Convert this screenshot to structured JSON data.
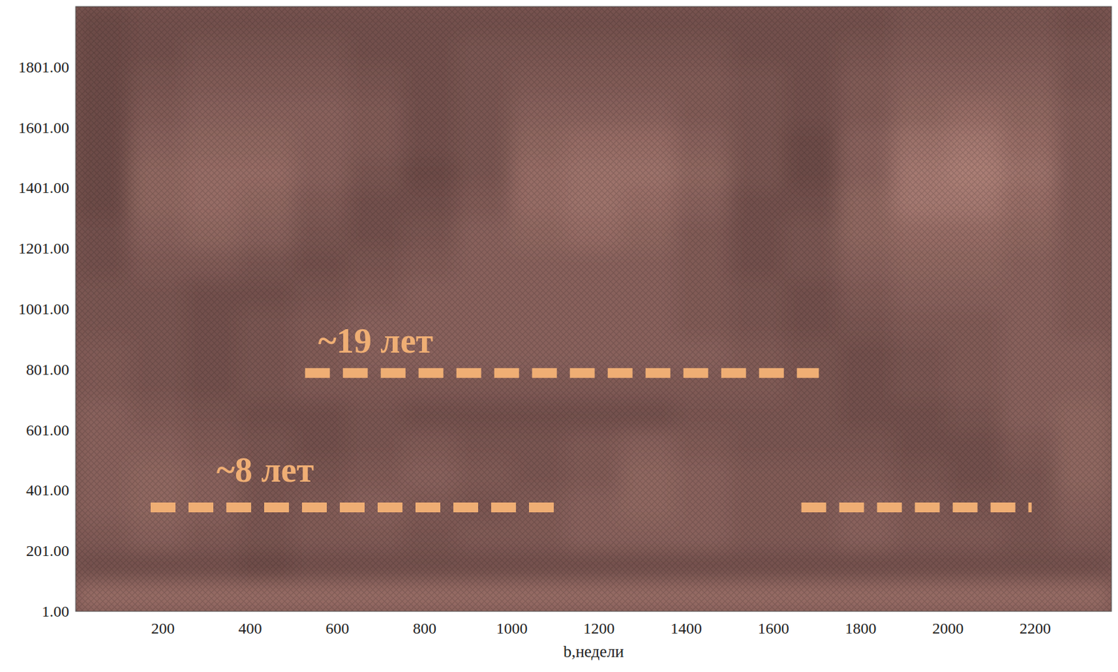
{
  "chart_data": {
    "type": "heatmap",
    "x_label": "b,недели",
    "xlim": [
      0,
      2375
    ],
    "ylim": [
      1,
      2001
    ],
    "xticks": [
      200,
      400,
      600,
      800,
      1000,
      1200,
      1400,
      1600,
      1800,
      2000,
      2200
    ],
    "yticks": [
      {
        "value": 1,
        "label": "1.00"
      },
      {
        "value": 201,
        "label": "201.00"
      },
      {
        "value": 401,
        "label": "401.00"
      },
      {
        "value": 601,
        "label": "601.00"
      },
      {
        "value": 801,
        "label": "801.00"
      },
      {
        "value": 1001,
        "label": "1001.00"
      },
      {
        "value": 1201,
        "label": "1201.00"
      },
      {
        "value": 1401,
        "label": "1401.00"
      },
      {
        "value": 1601,
        "label": "1601.00"
      },
      {
        "value": 1801,
        "label": "1801.00"
      }
    ],
    "colors": [
      "#3a2021",
      "#dba698"
    ],
    "zlim": [
      0,
      1
    ],
    "color": "#efae74",
    "x_edges": [
      0,
      125,
      250,
      375,
      500,
      625,
      750,
      875,
      1000,
      1125,
      1250,
      1375,
      1500,
      1625,
      1750,
      1875,
      2000,
      2125,
      2250,
      2375
    ],
    "y_edges": [
      1,
      101,
      201,
      301,
      401,
      501,
      601,
      701,
      801,
      901,
      1001,
      1101,
      1201,
      1301,
      1401,
      1501,
      1601,
      1701,
      1801,
      1901,
      2001
    ],
    "cells": [
      [
        0.6,
        0.6,
        0.6,
        0.6,
        0.6,
        0.6,
        0.6,
        0.6,
        0.6,
        0.6,
        0.6,
        0.6,
        0.6,
        0.6,
        0.6,
        0.6,
        0.6,
        0.6,
        0.6
      ],
      [
        0.35,
        0.35,
        0.35,
        0.3,
        0.35,
        0.35,
        0.35,
        0.35,
        0.35,
        0.35,
        0.35,
        0.35,
        0.35,
        0.35,
        0.35,
        0.35,
        0.35,
        0.35,
        0.35
      ],
      [
        0.45,
        0.5,
        0.45,
        0.4,
        0.45,
        0.45,
        0.4,
        0.45,
        0.45,
        0.5,
        0.5,
        0.5,
        0.45,
        0.45,
        0.5,
        0.45,
        0.45,
        0.4,
        0.45
      ],
      [
        0.5,
        0.55,
        0.5,
        0.4,
        0.45,
        0.5,
        0.45,
        0.4,
        0.45,
        0.5,
        0.55,
        0.5,
        0.45,
        0.45,
        0.5,
        0.45,
        0.4,
        0.4,
        0.5
      ],
      [
        0.5,
        0.55,
        0.5,
        0.4,
        0.4,
        0.45,
        0.5,
        0.45,
        0.4,
        0.45,
        0.55,
        0.5,
        0.45,
        0.45,
        0.45,
        0.4,
        0.35,
        0.4,
        0.55
      ],
      [
        0.5,
        0.5,
        0.45,
        0.4,
        0.35,
        0.4,
        0.45,
        0.4,
        0.4,
        0.45,
        0.5,
        0.45,
        0.4,
        0.4,
        0.4,
        0.35,
        0.35,
        0.45,
        0.55
      ],
      [
        0.5,
        0.45,
        0.4,
        0.35,
        0.35,
        0.4,
        0.35,
        0.35,
        0.35,
        0.35,
        0.35,
        0.4,
        0.4,
        0.4,
        0.35,
        0.35,
        0.4,
        0.5,
        0.55
      ],
      [
        0.45,
        0.4,
        0.35,
        0.4,
        0.45,
        0.45,
        0.45,
        0.45,
        0.45,
        0.45,
        0.45,
        0.45,
        0.45,
        0.4,
        0.35,
        0.4,
        0.45,
        0.5,
        0.5
      ],
      [
        0.45,
        0.4,
        0.35,
        0.4,
        0.45,
        0.5,
        0.5,
        0.5,
        0.5,
        0.5,
        0.5,
        0.5,
        0.45,
        0.4,
        0.35,
        0.4,
        0.45,
        0.5,
        0.5
      ],
      [
        0.4,
        0.4,
        0.35,
        0.4,
        0.45,
        0.5,
        0.5,
        0.5,
        0.5,
        0.5,
        0.5,
        0.45,
        0.4,
        0.35,
        0.4,
        0.45,
        0.45,
        0.5,
        0.45
      ],
      [
        0.4,
        0.4,
        0.35,
        0.35,
        0.4,
        0.45,
        0.5,
        0.5,
        0.5,
        0.5,
        0.5,
        0.45,
        0.4,
        0.35,
        0.45,
        0.5,
        0.5,
        0.5,
        0.45
      ],
      [
        0.35,
        0.45,
        0.45,
        0.4,
        0.35,
        0.4,
        0.45,
        0.5,
        0.5,
        0.5,
        0.5,
        0.45,
        0.35,
        0.4,
        0.5,
        0.55,
        0.55,
        0.5,
        0.45
      ],
      [
        0.35,
        0.5,
        0.55,
        0.5,
        0.4,
        0.35,
        0.4,
        0.5,
        0.55,
        0.6,
        0.55,
        0.45,
        0.35,
        0.4,
        0.55,
        0.6,
        0.6,
        0.55,
        0.45
      ],
      [
        0.3,
        0.55,
        0.6,
        0.55,
        0.45,
        0.35,
        0.35,
        0.45,
        0.6,
        0.65,
        0.6,
        0.5,
        0.35,
        0.35,
        0.55,
        0.7,
        0.7,
        0.6,
        0.45
      ],
      [
        0.3,
        0.55,
        0.6,
        0.6,
        0.5,
        0.4,
        0.3,
        0.4,
        0.6,
        0.65,
        0.65,
        0.55,
        0.4,
        0.3,
        0.5,
        0.7,
        0.75,
        0.65,
        0.45
      ],
      [
        0.3,
        0.5,
        0.55,
        0.55,
        0.5,
        0.45,
        0.35,
        0.4,
        0.55,
        0.6,
        0.6,
        0.5,
        0.4,
        0.3,
        0.5,
        0.65,
        0.7,
        0.6,
        0.45
      ],
      [
        0.3,
        0.45,
        0.5,
        0.5,
        0.5,
        0.45,
        0.35,
        0.4,
        0.5,
        0.5,
        0.5,
        0.45,
        0.4,
        0.35,
        0.45,
        0.55,
        0.6,
        0.55,
        0.45
      ],
      [
        0.3,
        0.4,
        0.45,
        0.45,
        0.45,
        0.4,
        0.35,
        0.4,
        0.45,
        0.45,
        0.45,
        0.45,
        0.4,
        0.35,
        0.45,
        0.5,
        0.5,
        0.5,
        0.4
      ],
      [
        0.3,
        0.35,
        0.4,
        0.4,
        0.4,
        0.35,
        0.35,
        0.4,
        0.4,
        0.4,
        0.4,
        0.4,
        0.35,
        0.35,
        0.4,
        0.45,
        0.45,
        0.45,
        0.4
      ],
      [
        0.3,
        0.35,
        0.35,
        0.35,
        0.35,
        0.35,
        0.35,
        0.35,
        0.35,
        0.35,
        0.35,
        0.35,
        0.35,
        0.35,
        0.35,
        0.4,
        0.4,
        0.4,
        0.35
      ]
    ],
    "annotations": [
      {
        "text": "~19 лет",
        "x": 556,
        "y": 857,
        "line_y": 789,
        "segments": [
          [
            526,
            1704
          ]
        ]
      },
      {
        "text": "~8 лет",
        "x": 323,
        "y": 430,
        "line_y": 345,
        "segments": [
          [
            172,
            1098
          ],
          [
            1664,
            2192
          ]
        ]
      }
    ]
  }
}
